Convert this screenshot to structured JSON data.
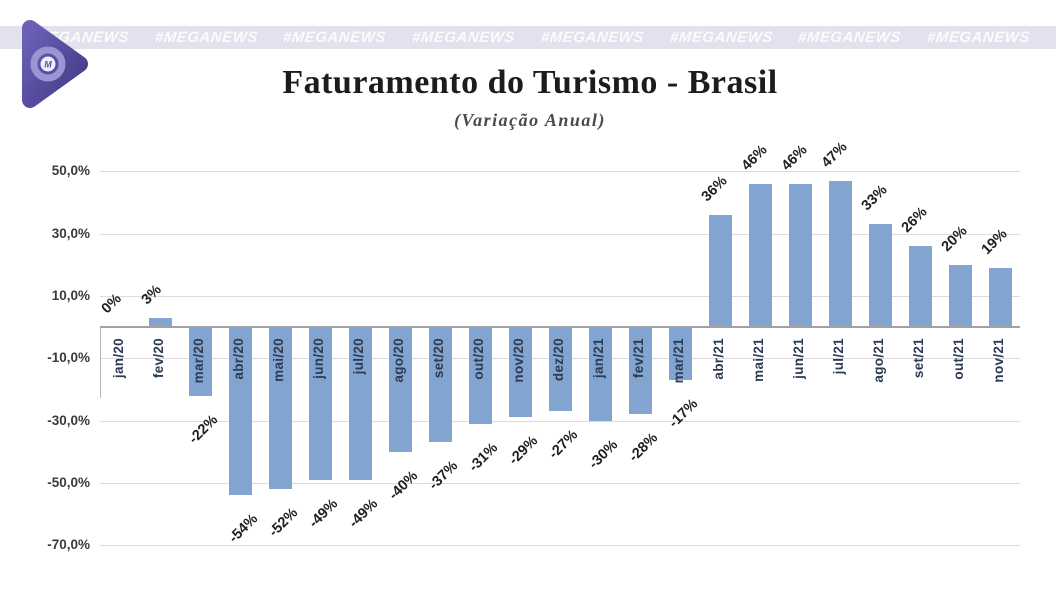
{
  "banner": {
    "hashtag": "#MEGANEWS",
    "repeat": 8,
    "background": "#e2e2ee",
    "text_color": "#ffffff"
  },
  "logo": {
    "letter": "M",
    "primary_color": "#4d4296",
    "ring_color": "#9b95d4"
  },
  "chart_data": {
    "type": "bar",
    "title": "Faturamento do Turismo - Brasil",
    "subtitle": "(Variação Anual)",
    "categories": [
      "jan/20",
      "fev/20",
      "mar/20",
      "abr/20",
      "mai/20",
      "jun/20",
      "jul/20",
      "ago/20",
      "set/20",
      "out/20",
      "nov/20",
      "dez/20",
      "jan/21",
      "fev/21",
      "mar/21",
      "abr/21",
      "mai/21",
      "jun/21",
      "jul/21",
      "ago/21",
      "set/21",
      "out/21",
      "nov/21"
    ],
    "values": [
      0,
      3,
      -22,
      -54,
      -52,
      -49,
      -49,
      -40,
      -37,
      -31,
      -29,
      -27,
      -30,
      -28,
      -17,
      36,
      46,
      46,
      47,
      33,
      26,
      20,
      19
    ],
    "data_labels": [
      "0%",
      "3%",
      "-22%",
      "-54%",
      "-52%",
      "-49%",
      "-49%",
      "-40%",
      "-37%",
      "-31%",
      "-29%",
      "-27%",
      "-30%",
      "-28%",
      "-17%",
      "36%",
      "46%",
      "46%",
      "47%",
      "33%",
      "26%",
      "20%",
      "19%"
    ],
    "y_ticks": [
      {
        "label": "50,0%",
        "value": 50
      },
      {
        "label": "30,0%",
        "value": 30
      },
      {
        "label": "10,0%",
        "value": 10
      },
      {
        "label": "-10,0%",
        "value": -10
      },
      {
        "label": "-30,0%",
        "value": -30
      },
      {
        "label": "-50,0%",
        "value": -50
      },
      {
        "label": "-70,0%",
        "value": -70
      }
    ],
    "ylim": [
      -70,
      50
    ],
    "xlabel": "",
    "ylabel": "",
    "grid": true,
    "legend": "none",
    "bar_color": "#82a4d0"
  }
}
